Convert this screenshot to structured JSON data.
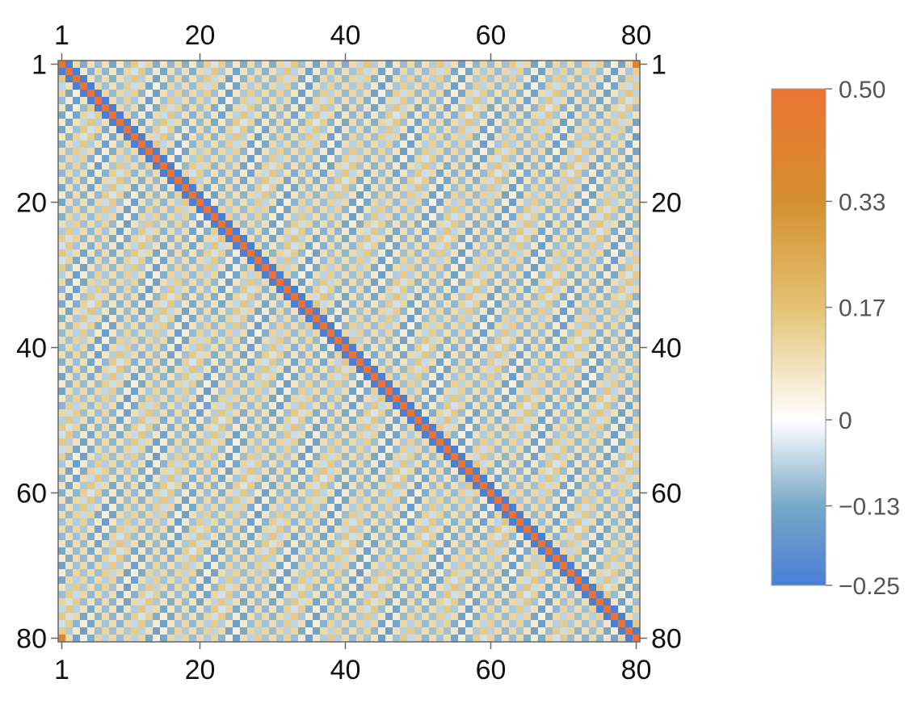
{
  "chart_data": {
    "type": "heatmap",
    "title": "",
    "xlabel": "",
    "ylabel": "",
    "rows": 80,
    "cols": 80,
    "x_ticks": [
      1,
      20,
      40,
      60,
      80
    ],
    "y_ticks": [
      1,
      20,
      40,
      60,
      80
    ],
    "x_tick_labels": [
      "1",
      "20",
      "40",
      "60",
      "80"
    ],
    "y_tick_labels": [
      "1",
      "20",
      "40",
      "60",
      "80"
    ],
    "diagonal_value": 0.5,
    "near_diagonal_value": -0.25,
    "corner_value": 0.4,
    "value_range": [
      -0.25,
      0.5
    ],
    "grid": false,
    "legend": {
      "type": "colorbar",
      "placement": "right",
      "tick_values": [
        0.5,
        0.33,
        0.17,
        0,
        -0.13,
        -0.25
      ],
      "tick_labels": [
        "0.50",
        "0.33",
        "0.17",
        "0",
        "−0.13",
        "−0.25"
      ]
    },
    "colorscale": [
      {
        "value": -0.25,
        "color": "#4a7fd6"
      },
      {
        "value": -0.13,
        "color": "#78a8c8"
      },
      {
        "value": 0.0,
        "color": "#ffffff"
      },
      {
        "value": 0.17,
        "color": "#e4c274"
      },
      {
        "value": 0.33,
        "color": "#d4902e"
      },
      {
        "value": 0.5,
        "color": "#ee7332"
      }
    ]
  }
}
